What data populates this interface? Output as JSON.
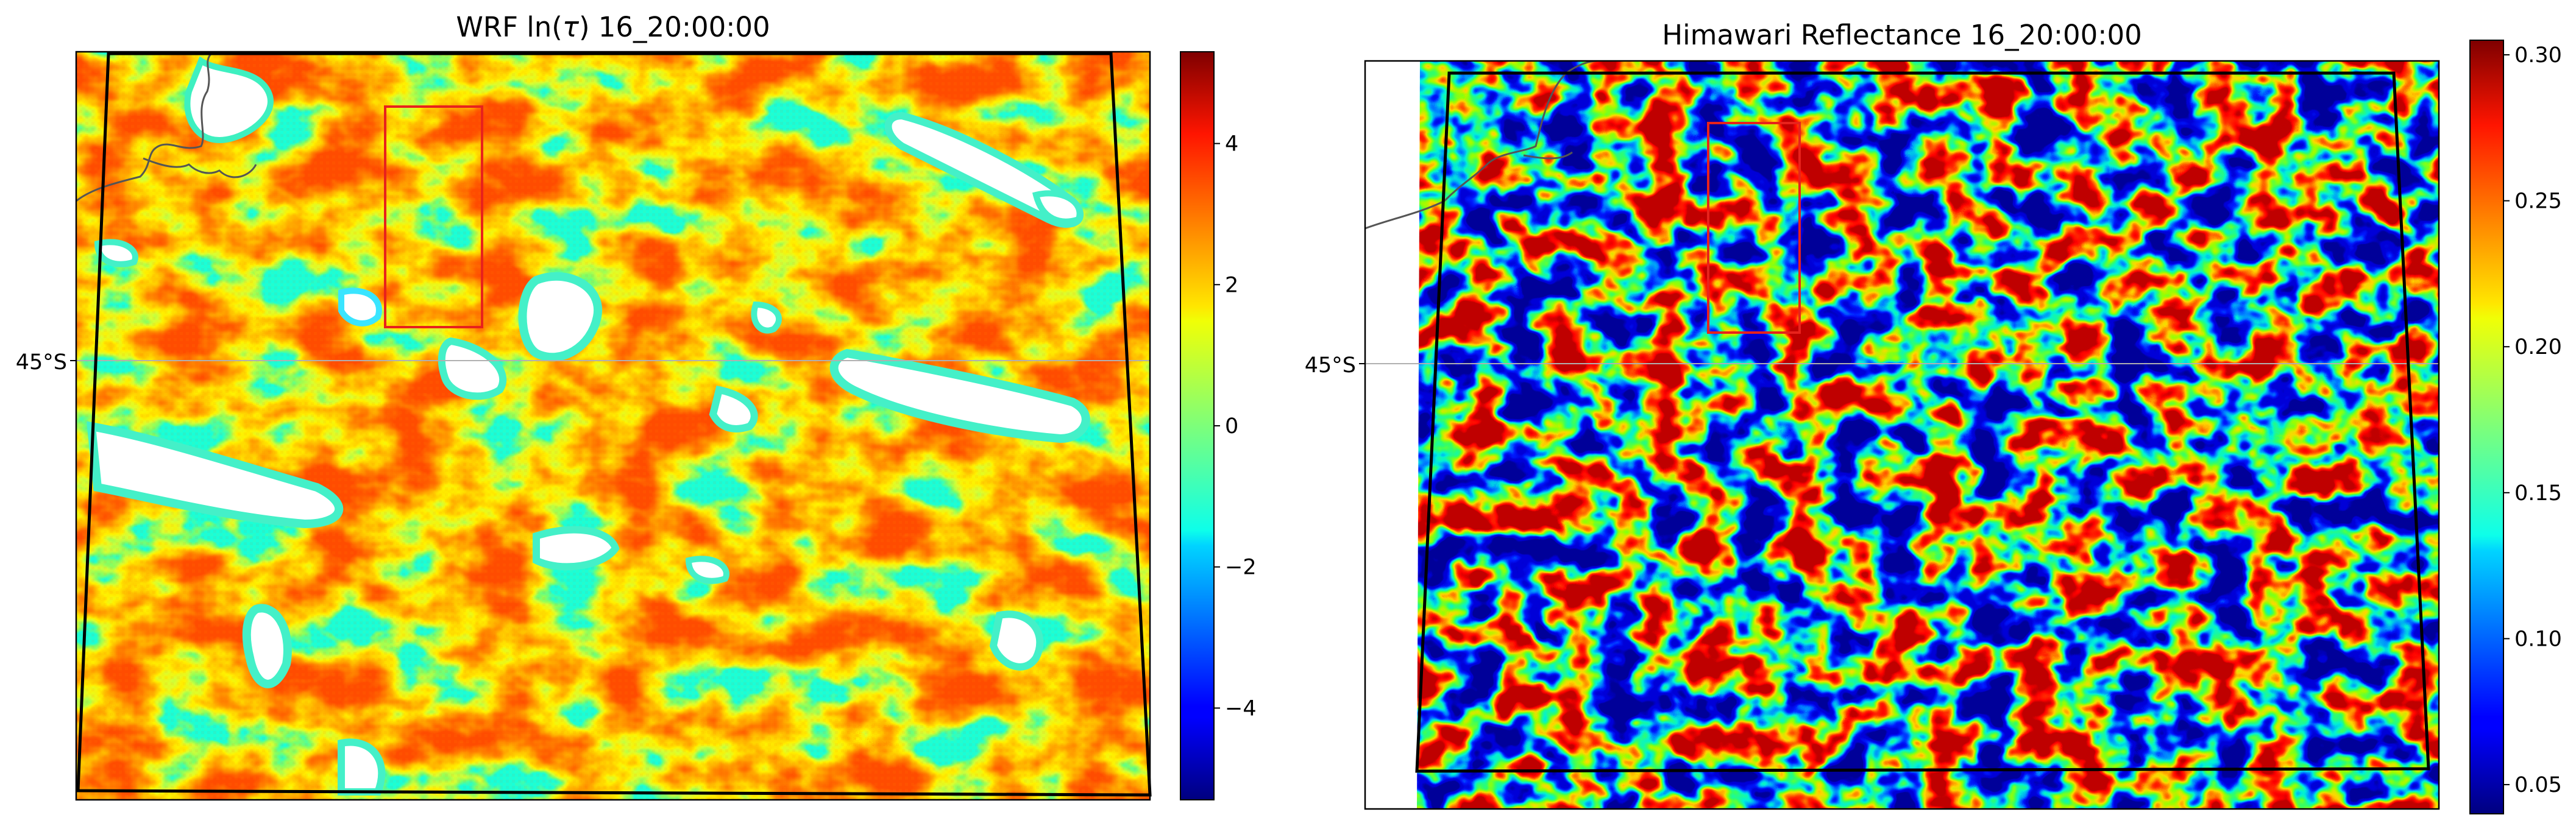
{
  "chart_data": [
    {
      "type": "heatmap",
      "title": "WRF ln(τ) 16_20:00:00",
      "title_main": "WRF ln(",
      "title_symbol": "τ",
      "title_rest": ") 16_20:00:00",
      "ytick_labels": [
        "45°S"
      ],
      "colormap": "jet",
      "colorbar": {
        "range": [
          -5.3,
          5.3
        ],
        "ticks": [
          -4,
          -2,
          0,
          2,
          4
        ],
        "tick_labels": [
          "−4",
          "−2",
          "0",
          "2",
          "4"
        ]
      },
      "field_description_range": [
        -5.3,
        5.3
      ],
      "missing_color": "#ffffff",
      "overlays": [
        "domain-boundary",
        "coastline",
        "latitude-gridline",
        "red-box"
      ]
    },
    {
      "type": "heatmap",
      "title": "Himawari Reflectance 16_20:00:00",
      "ytick_labels": [
        "45°S"
      ],
      "colormap": "jet",
      "colorbar": {
        "range": [
          0.04,
          0.305
        ],
        "ticks": [
          0.05,
          0.1,
          0.15,
          0.2,
          0.25,
          0.3
        ],
        "tick_labels": [
          "0.05",
          "0.10",
          "0.15",
          "0.20",
          "0.25",
          "0.30"
        ]
      },
      "overlays": [
        "domain-boundary",
        "coastline",
        "latitude-gridline",
        "red-box"
      ]
    }
  ]
}
